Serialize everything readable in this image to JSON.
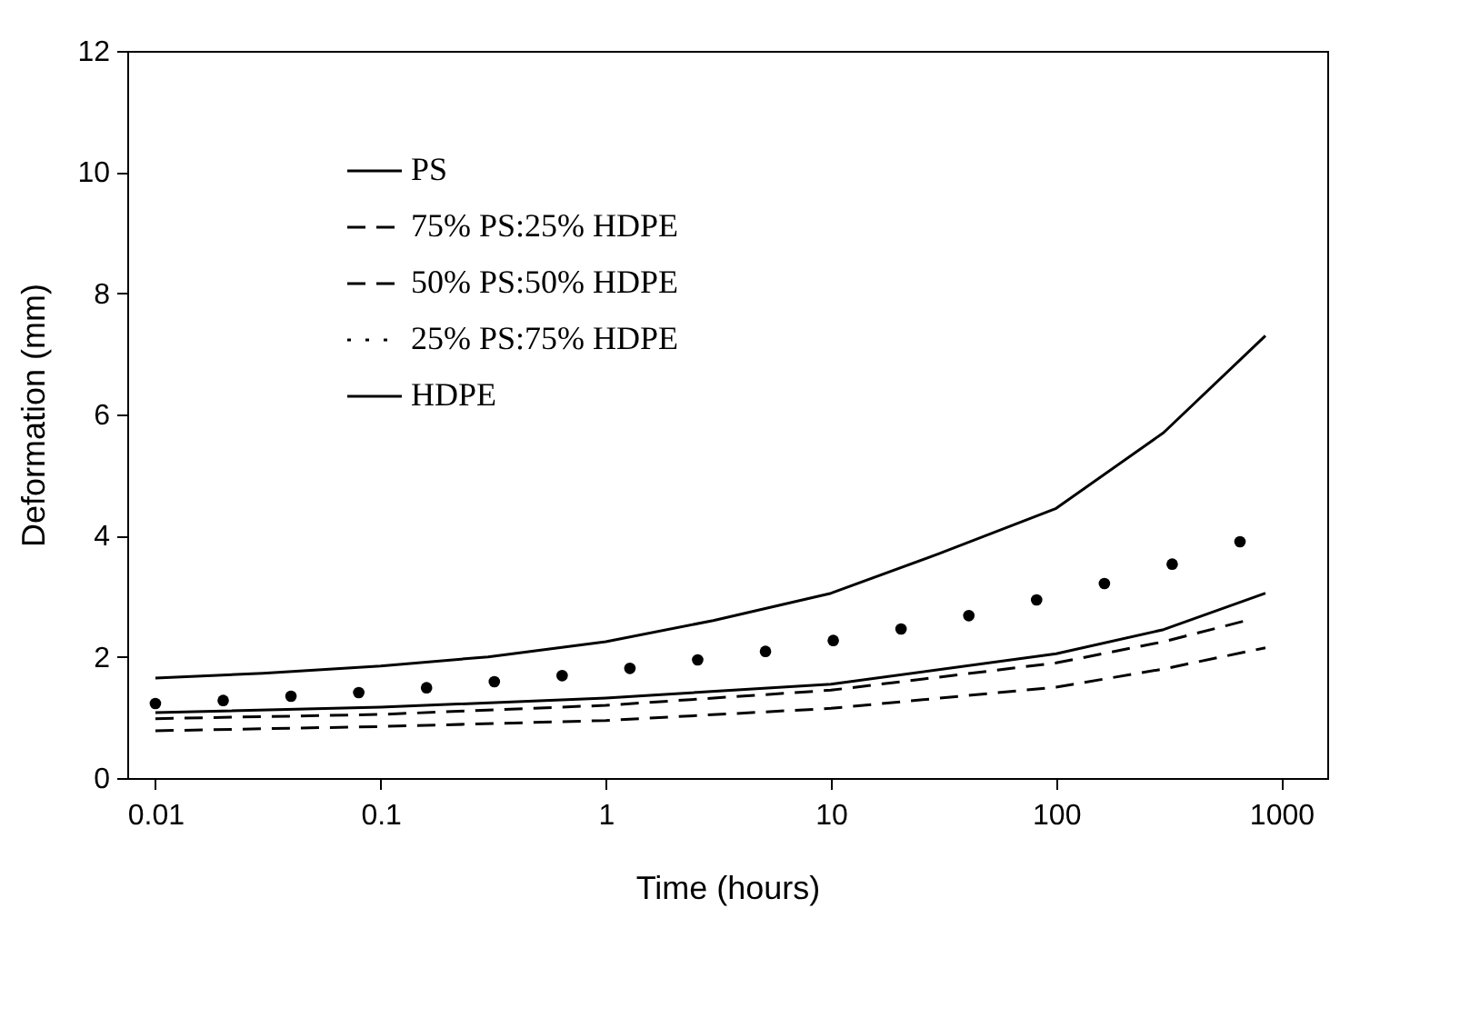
{
  "chart_data": {
    "type": "line",
    "xlabel": "Time (hours)",
    "ylabel": "Deformation (mm)",
    "log": "x",
    "xlim": [
      0.0075,
      1600
    ],
    "xticks": [
      0.01,
      0.1,
      1,
      10,
      100,
      1000
    ],
    "ylim": [
      0,
      12
    ],
    "yticks": [
      0,
      2,
      4,
      6,
      8,
      10,
      12
    ],
    "grid": false,
    "legend": "top left",
    "series": [
      {
        "name": "PS",
        "color": "#000000",
        "line_style": "solid",
        "x": [
          0.01,
          0.1,
          1,
          10,
          100,
          300,
          850
        ],
        "values": [
          1.08,
          1.17,
          1.32,
          1.55,
          2.05,
          2.45,
          3.05
        ]
      },
      {
        "name": "75% PS:25% HDPE",
        "color": "#000000",
        "line_style": "dashed",
        "x": [
          0.01,
          0.1,
          1,
          10,
          100,
          300,
          850
        ],
        "values": [
          0.78,
          0.85,
          0.95,
          1.15,
          1.5,
          1.8,
          2.15
        ]
      },
      {
        "name": "50% PS:50% HDPE",
        "color": "#000000",
        "line_style": "dashed",
        "x": [
          0.01,
          0.1,
          1,
          10,
          100,
          300,
          700
        ],
        "values": [
          0.98,
          1.05,
          1.2,
          1.45,
          1.9,
          2.25,
          2.6
        ]
      },
      {
        "name": "25% PS:75% HDPE",
        "type": "scatter",
        "color": "#000000",
        "marker": "circle",
        "x": [
          0.01,
          0.02,
          0.04,
          0.08,
          0.16,
          0.32,
          0.64,
          1.28,
          2.56,
          5.12,
          10.24,
          20.48,
          40.96,
          81.92,
          163.84,
          327.68,
          655.36
        ],
        "values": [
          1.23,
          1.28,
          1.35,
          1.41,
          1.49,
          1.59,
          1.69,
          1.81,
          1.95,
          2.09,
          2.27,
          2.46,
          2.68,
          2.94,
          3.21,
          3.53,
          3.9
        ]
      },
      {
        "name": "HDPE",
        "color": "#000000",
        "line_style": "solid",
        "x": [
          0.01,
          0.03,
          0.1,
          0.3,
          1,
          3,
          10,
          30,
          100,
          300,
          850
        ],
        "values": [
          1.65,
          1.73,
          1.85,
          2.0,
          2.25,
          2.6,
          3.05,
          3.7,
          4.45,
          5.7,
          7.3
        ]
      }
    ]
  }
}
